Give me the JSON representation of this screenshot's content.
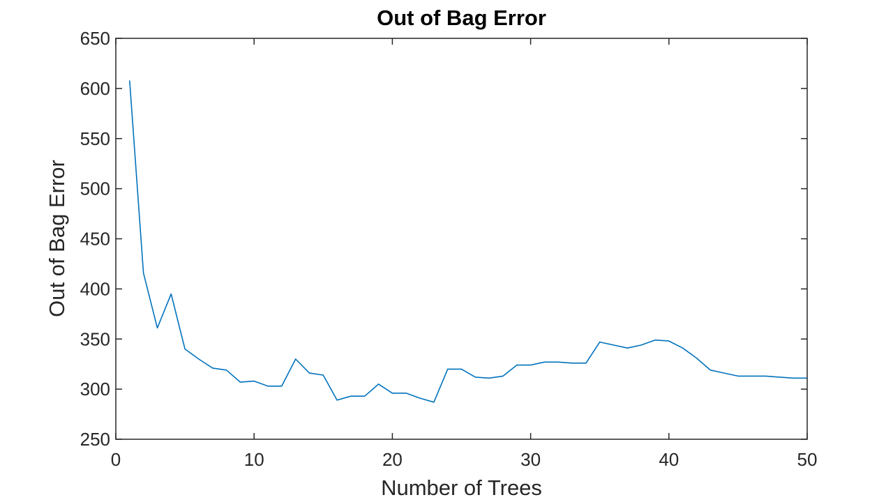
{
  "chart_data": {
    "type": "line",
    "title": "Out of Bag Error",
    "xlabel": "Number of Trees",
    "ylabel": "Out of Bag Error",
    "xlim": [
      0,
      50
    ],
    "ylim": [
      250,
      650
    ],
    "xticks": [
      0,
      10,
      20,
      30,
      40,
      50
    ],
    "yticks": [
      250,
      300,
      350,
      400,
      450,
      500,
      550,
      600,
      650
    ],
    "grid": false,
    "line_color": "#0072BD",
    "series": [
      {
        "x": [
          1,
          2,
          3,
          4,
          5,
          6,
          7,
          8,
          9,
          10,
          11,
          12,
          13,
          14,
          15,
          16,
          17,
          18,
          19,
          20,
          21,
          22,
          23,
          24,
          25,
          26,
          27,
          28,
          29,
          30,
          31,
          32,
          33,
          34,
          35,
          36,
          37,
          38,
          39,
          40,
          41,
          42,
          43,
          44,
          45,
          46,
          47,
          48,
          49,
          50
        ],
        "values": [
          608,
          416,
          361,
          395,
          340,
          330,
          321,
          319,
          307,
          308,
          303,
          303,
          330,
          316,
          314,
          289,
          293,
          293,
          305,
          296,
          296,
          291,
          287,
          320,
          320,
          312,
          311,
          313,
          324,
          324,
          327,
          327,
          326,
          326,
          347,
          344,
          341,
          344,
          349,
          348,
          341,
          331,
          319,
          316,
          313,
          313,
          313,
          312,
          311,
          311
        ]
      }
    ]
  }
}
